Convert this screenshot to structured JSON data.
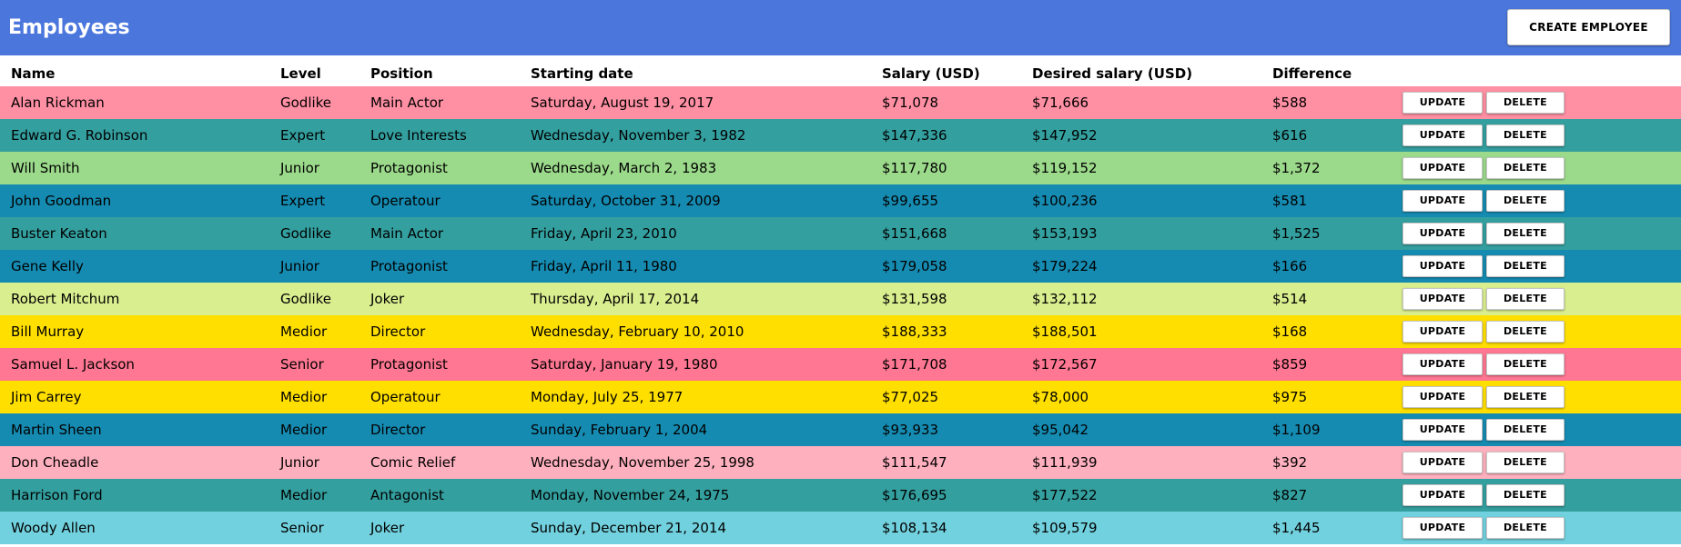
{
  "header": {
    "title": "Employees",
    "create_label": "CREATE EMPLOYEE",
    "background": "#4b77dd"
  },
  "columns": {
    "name": "Name",
    "level": "Level",
    "position": "Position",
    "starting_date": "Starting date",
    "salary": "Salary (USD)",
    "desired_salary": "Desired salary (USD)",
    "difference": "Difference"
  },
  "actions": {
    "update": "UPDATE",
    "delete": "DELETE"
  },
  "employees": [
    {
      "name": "Alan Rickman",
      "level": "Godlike",
      "position": "Main Actor",
      "starting_date": "Saturday, August 19, 2017",
      "salary": "$71,078",
      "desired_salary": "$71,666",
      "difference": "$588",
      "color": "#ff8fa3"
    },
    {
      "name": "Edward G. Robinson",
      "level": "Expert",
      "position": "Love Interests",
      "starting_date": "Wednesday, November 3, 1982",
      "salary": "$147,336",
      "desired_salary": "$147,952",
      "difference": "$616",
      "color": "#349f9f"
    },
    {
      "name": "Will Smith",
      "level": "Junior",
      "position": "Protagonist",
      "starting_date": "Wednesday, March 2, 1983",
      "salary": "$117,780",
      "desired_salary": "$119,152",
      "difference": "$1,372",
      "color": "#9bda8b"
    },
    {
      "name": "John Goodman",
      "level": "Expert",
      "position": "Operatour",
      "starting_date": "Saturday, October 31, 2009",
      "salary": "$99,655",
      "desired_salary": "$100,236",
      "difference": "$581",
      "color": "#168bb1"
    },
    {
      "name": "Buster Keaton",
      "level": "Godlike",
      "position": "Main Actor",
      "starting_date": "Friday, April 23, 2010",
      "salary": "$151,668",
      "desired_salary": "$153,193",
      "difference": "$1,525",
      "color": "#349f9f"
    },
    {
      "name": "Gene Kelly",
      "level": "Junior",
      "position": "Protagonist",
      "starting_date": "Friday, April 11, 1980",
      "salary": "$179,058",
      "desired_salary": "$179,224",
      "difference": "$166",
      "color": "#168bb1"
    },
    {
      "name": "Robert Mitchum",
      "level": "Godlike",
      "position": "Joker",
      "starting_date": "Thursday, April 17, 2014",
      "salary": "$131,598",
      "desired_salary": "$132,112",
      "difference": "$514",
      "color": "#d9ee8f"
    },
    {
      "name": "Bill Murray",
      "level": "Medior",
      "position": "Director",
      "starting_date": "Wednesday, February 10, 2010",
      "salary": "$188,333",
      "desired_salary": "$188,501",
      "difference": "$168",
      "color": "#ffdf00"
    },
    {
      "name": "Samuel L. Jackson",
      "level": "Senior",
      "position": "Protagonist",
      "starting_date": "Saturday, January 19, 1980",
      "salary": "$171,708",
      "desired_salary": "$172,567",
      "difference": "$859",
      "color": "#ff7792"
    },
    {
      "name": "Jim Carrey",
      "level": "Medior",
      "position": "Operatour",
      "starting_date": "Monday, July 25, 1977",
      "salary": "$77,025",
      "desired_salary": "$78,000",
      "difference": "$975",
      "color": "#ffdf00"
    },
    {
      "name": "Martin Sheen",
      "level": "Medior",
      "position": "Director",
      "starting_date": "Sunday, February 1, 2004",
      "salary": "$93,933",
      "desired_salary": "$95,042",
      "difference": "$1,109",
      "color": "#168bb1"
    },
    {
      "name": "Don Cheadle",
      "level": "Junior",
      "position": "Comic Relief",
      "starting_date": "Wednesday, November 25, 1998",
      "salary": "$111,547",
      "desired_salary": "$111,939",
      "difference": "$392",
      "color": "#ffb0be"
    },
    {
      "name": "Harrison Ford",
      "level": "Medior",
      "position": "Antagonist",
      "starting_date": "Monday, November 24, 1975",
      "salary": "$176,695",
      "desired_salary": "$177,522",
      "difference": "$827",
      "color": "#349f9f"
    },
    {
      "name": "Woody Allen",
      "level": "Senior",
      "position": "Joker",
      "starting_date": "Sunday, December 21, 2014",
      "salary": "$108,134",
      "desired_salary": "$109,579",
      "difference": "$1,445",
      "color": "#72d1de"
    }
  ]
}
